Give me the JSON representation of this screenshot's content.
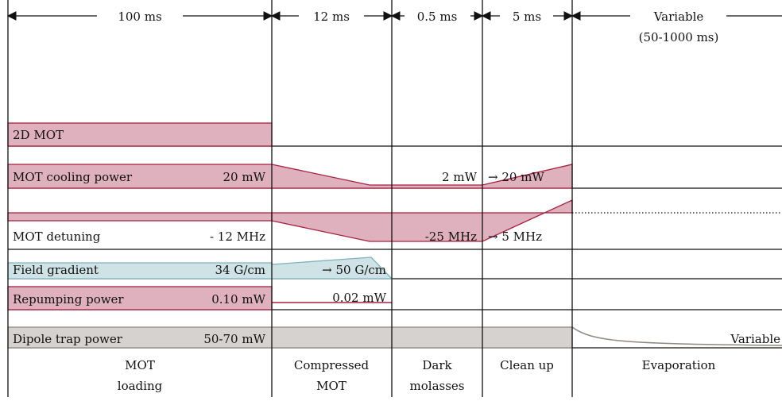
{
  "phases": [
    {
      "duration": "100 ms",
      "label_line1": "MOT",
      "label_line2": "loading"
    },
    {
      "duration": "12 ms",
      "label_line1": "Compressed",
      "label_line2": "MOT"
    },
    {
      "duration": "0.5 ms",
      "label_line1": "Dark",
      "label_line2": "molasses"
    },
    {
      "duration": "5 ms",
      "label_line1": "Clean up",
      "label_line2": ""
    },
    {
      "duration": "Variable",
      "duration_line2": "(50-1000 ms)",
      "label_line1": "Evaporation",
      "label_line2": ""
    }
  ],
  "rows": {
    "mot2d": {
      "label": "2D MOT"
    },
    "cooling": {
      "label": "MOT cooling power",
      "value_start": "20 mW",
      "value_molasses": "2 mW",
      "value_cleanup": "→ 20 mW"
    },
    "detuning": {
      "label": "MOT detuning",
      "value_start": "- 12 MHz",
      "value_molasses": "-25 MHz",
      "value_cleanup": "→ 5 MHz"
    },
    "gradient": {
      "label": "Field gradient",
      "value_start": "34 G/cm",
      "value_cmot": "→ 50 G/cm"
    },
    "repump": {
      "label": "Repumping power",
      "value_start": "0.10 mW",
      "value_cmot": "0.02 mW"
    },
    "dipole": {
      "label": "Dipole trap power",
      "value_start": "50-70 mW",
      "value_evap": "Variable"
    }
  },
  "colors": {
    "laser_fill": "#dfb0bd",
    "laser_edge": "#a8203f",
    "field_fill": "#cfe3e6",
    "dipole_fill": "#d6d2cf"
  }
}
